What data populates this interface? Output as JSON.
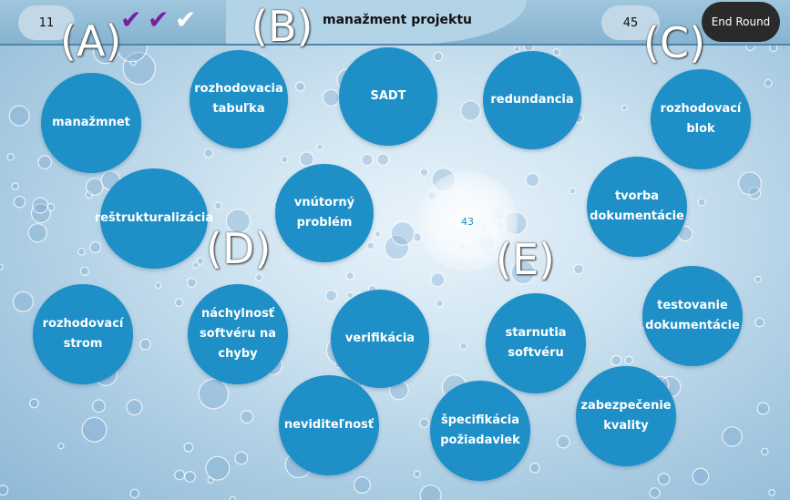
{
  "header": {
    "score_left": "11",
    "score_right": "45",
    "title": "manažment projektu",
    "end_round_label": "End Round",
    "checks": [
      {
        "color": "#7a1fa2",
        "icon": "check-icon"
      },
      {
        "color": "#7a1fa2",
        "icon": "check-icon"
      },
      {
        "color": "#ffffff",
        "icon": "check-icon"
      }
    ]
  },
  "center_value": "43",
  "markers": [
    "(A)",
    "(B)",
    "(C)",
    "(D)",
    "(E)"
  ],
  "terms": [
    "manažmnet",
    "rozhodovacia tabuľka",
    "SADT",
    "redundancia",
    "rozhodovací blok",
    "reštrukturalizácia",
    "vnútorný problém",
    "tvorba dokumentácie",
    "rozhodovací strom",
    "náchylnosť softvéru na chyby",
    "verifikácia",
    "starnutia softvéru",
    "testovanie dokumentácie",
    "neviditeľnosť",
    "špecifikácia požiadaviek",
    "zabezpečenie kvality"
  ],
  "colors": {
    "circle": "#1e8fc7",
    "accent_check": "#7a1fa2"
  }
}
